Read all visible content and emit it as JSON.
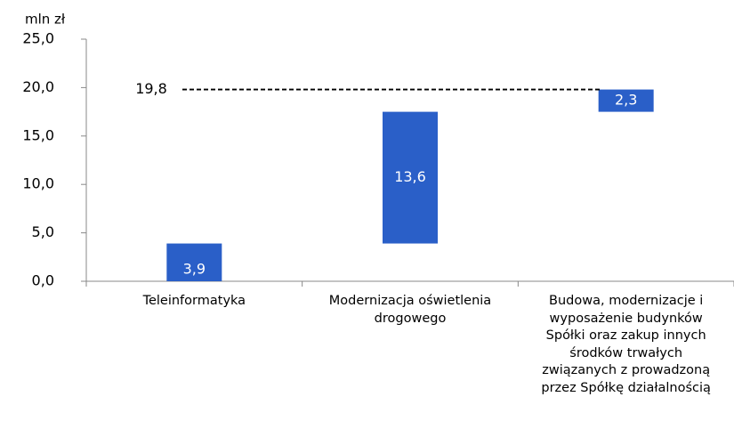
{
  "chart_data": {
    "type": "waterfall",
    "unit_label": "mln zł",
    "categories": [
      "Teleinformatyka",
      "Modernizacja oświetlenia drogowego",
      "Budowa, modernizacje i wyposażenie budynków Spółki oraz zakup innych środków trwałych związanych z prowadzoną przez Spółkę działalnością"
    ],
    "values": [
      3.9,
      13.6,
      2.3
    ],
    "value_labels": [
      "3,9",
      "13,6",
      "2,3"
    ],
    "color": "#2a5fc8",
    "total": 19.8,
    "total_label": "19,8",
    "ylim": [
      0,
      25
    ],
    "yticks": [
      {
        "value": 0,
        "label": "0,0"
      },
      {
        "value": 5,
        "label": "5,0"
      },
      {
        "value": 10,
        "label": "10,0"
      },
      {
        "value": 15,
        "label": "15,0"
      },
      {
        "value": 20,
        "label": "20,0"
      },
      {
        "value": 25,
        "label": "25,0"
      }
    ]
  }
}
